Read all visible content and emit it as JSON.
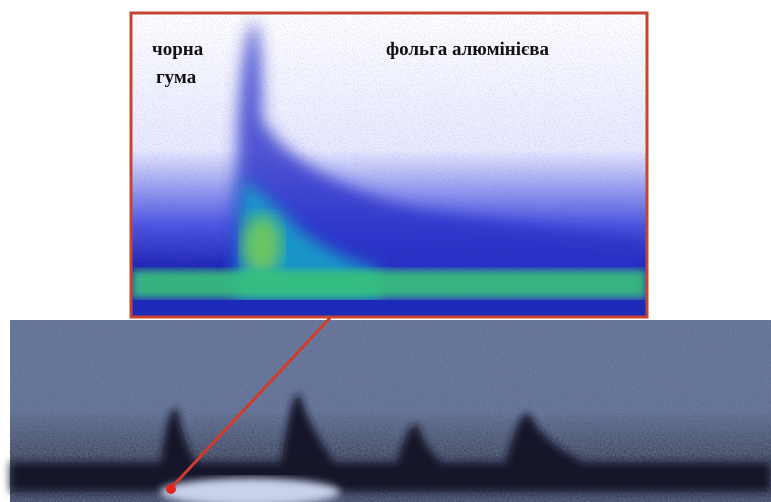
{
  "inset": {
    "label_left": [
      "чорна",
      "гума"
    ],
    "label_right": "фольга алюмінієва"
  }
}
